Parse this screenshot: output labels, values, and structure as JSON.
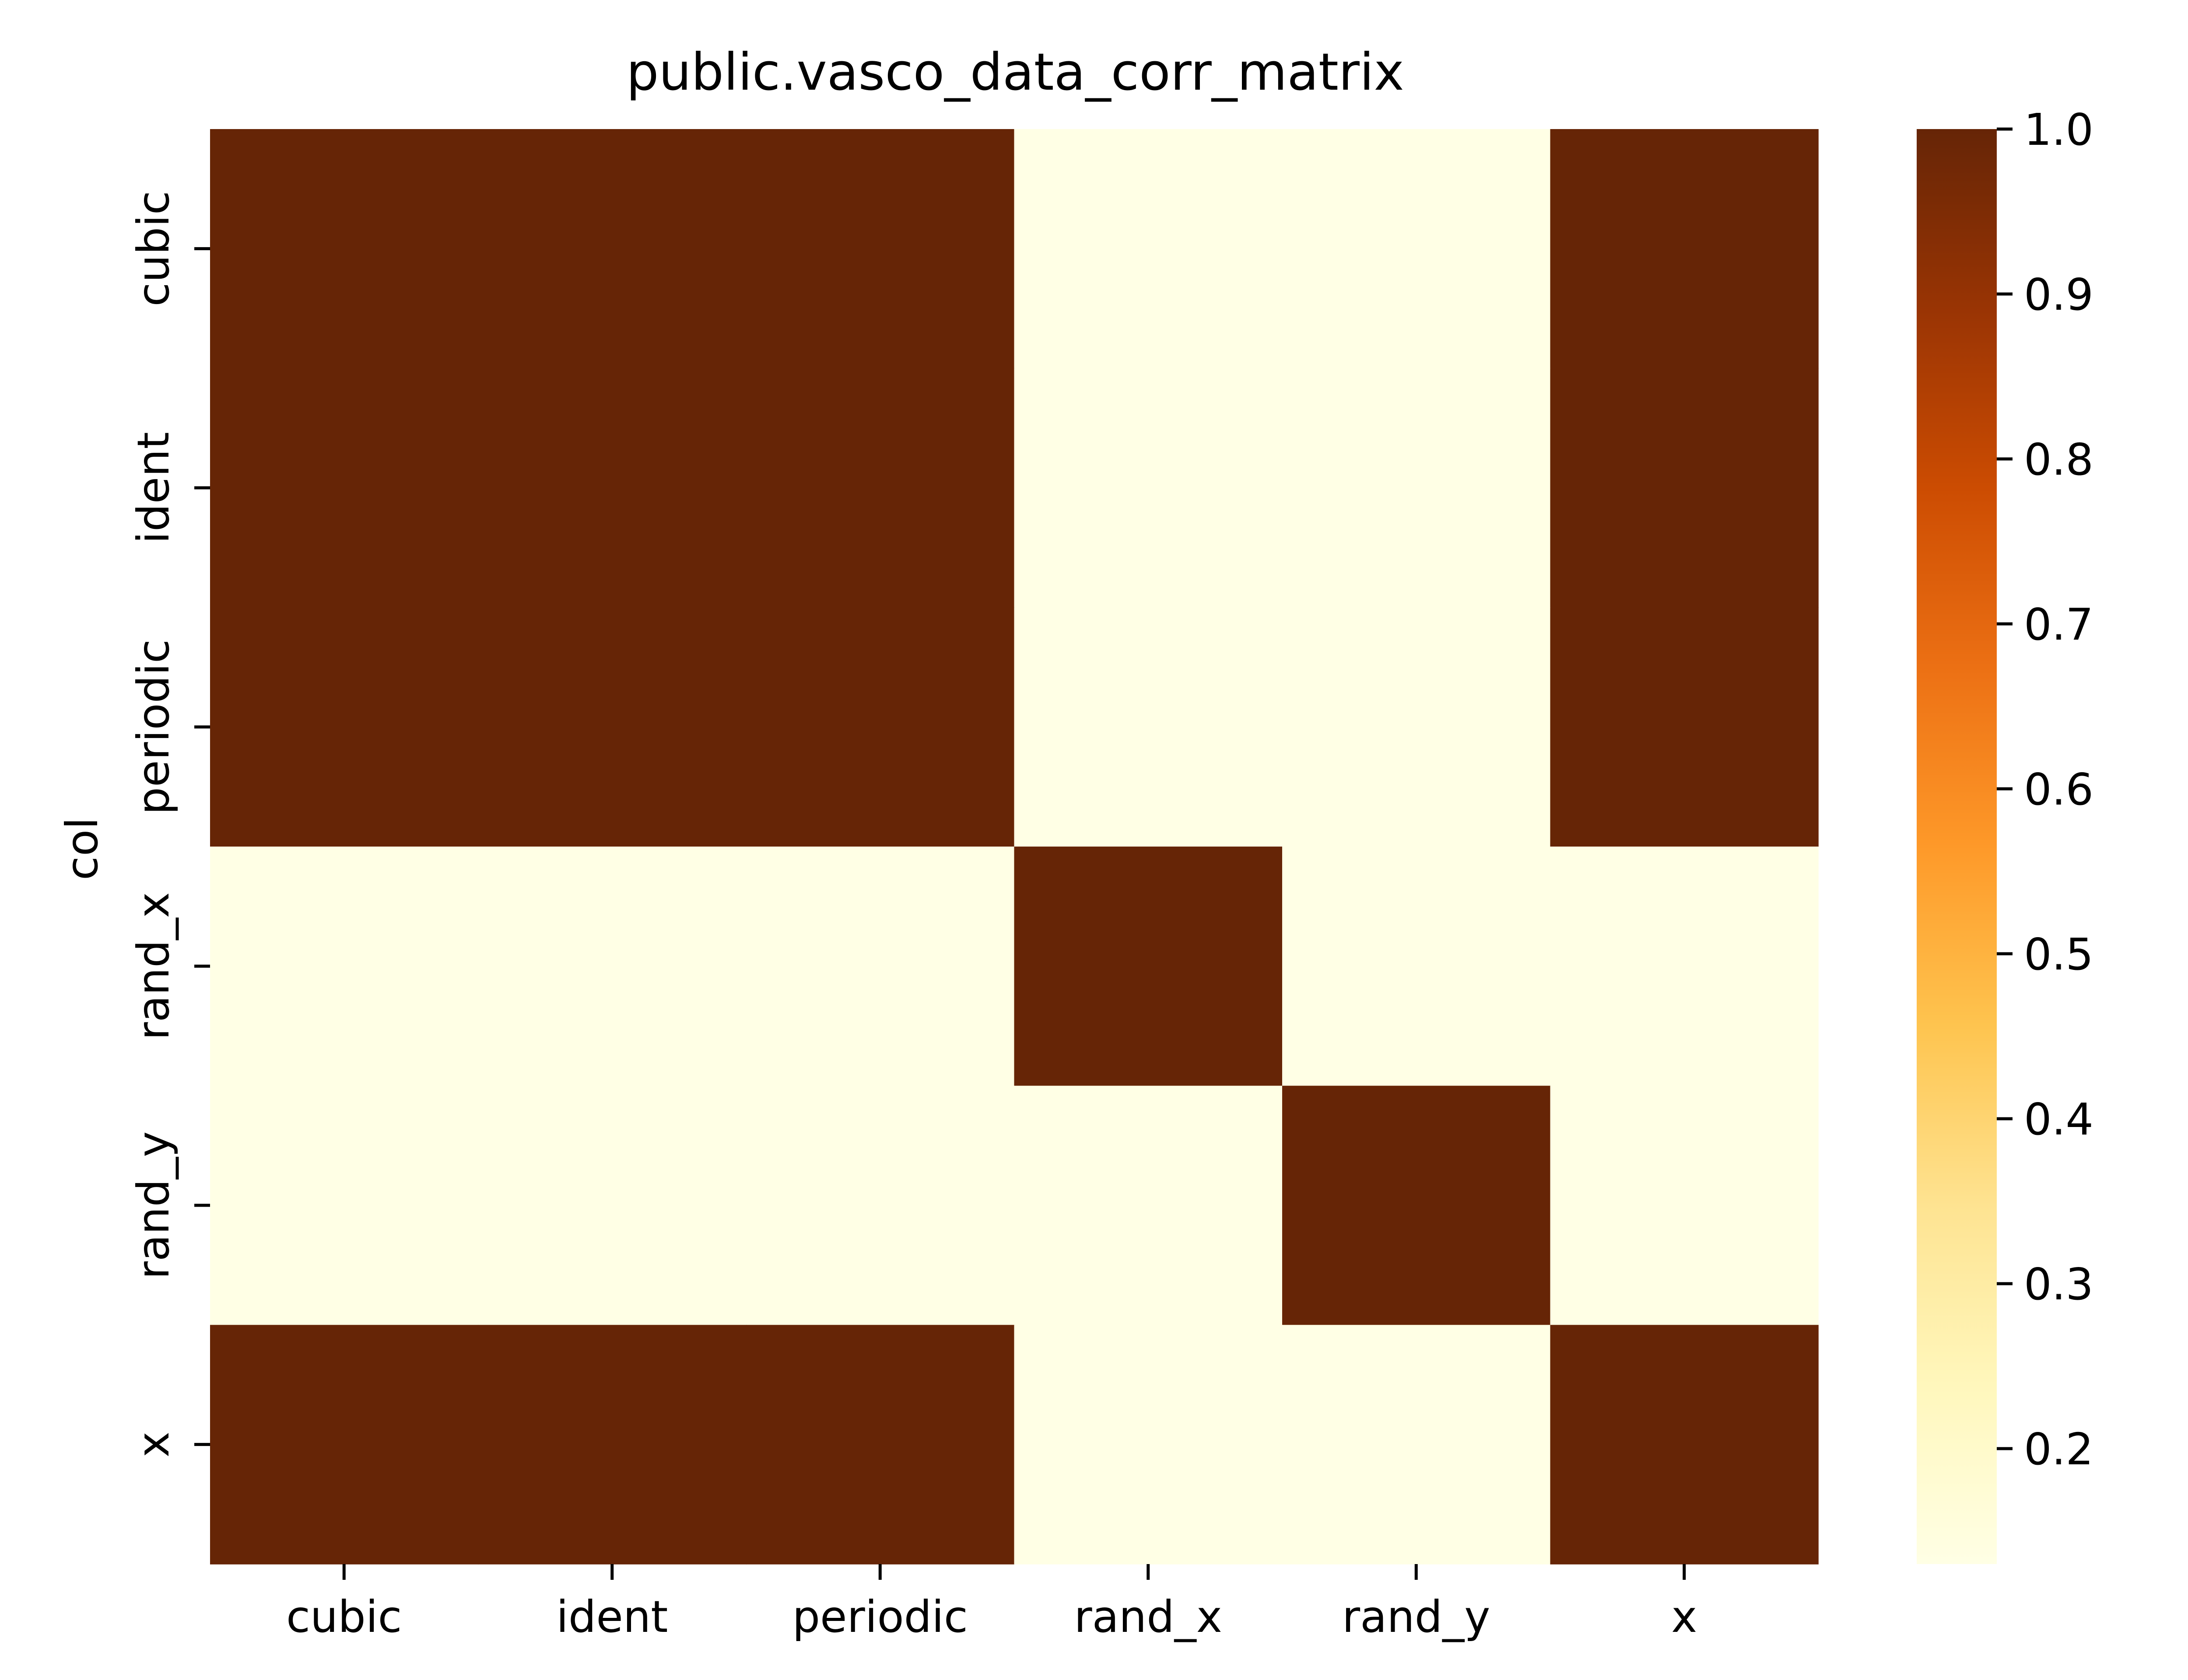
{
  "chart_data": {
    "type": "heatmap",
    "title": "public.vasco_data_corr_matrix",
    "ylabel": "col",
    "xlabel": "",
    "x_categories": [
      "cubic",
      "ident",
      "periodic",
      "rand_x",
      "rand_y",
      "x"
    ],
    "y_categories": [
      "cubic",
      "ident",
      "periodic",
      "rand_x",
      "rand_y",
      "x"
    ],
    "values": [
      [
        1.0,
        1.0,
        1.0,
        0.13,
        0.13,
        1.0
      ],
      [
        1.0,
        1.0,
        1.0,
        0.13,
        0.13,
        1.0
      ],
      [
        1.0,
        1.0,
        1.0,
        0.13,
        0.13,
        1.0
      ],
      [
        0.13,
        0.13,
        0.13,
        1.0,
        0.13,
        0.13
      ],
      [
        0.13,
        0.13,
        0.13,
        0.13,
        1.0,
        0.13
      ],
      [
        1.0,
        1.0,
        1.0,
        0.13,
        0.13,
        1.0
      ]
    ],
    "colormap": "YlOrBr",
    "colorbar": {
      "range": [
        0.13,
        1.0
      ],
      "ticks": [
        0.2,
        0.3,
        0.4,
        0.5,
        0.6,
        0.7,
        0.8,
        0.9,
        1.0
      ],
      "tick_labels": [
        "0.2",
        "0.3",
        "0.4",
        "0.5",
        "0.6",
        "0.7",
        "0.8",
        "0.9",
        "1.0"
      ]
    },
    "colors": {
      "low": "#ffffe5",
      "high": "#662506"
    }
  }
}
